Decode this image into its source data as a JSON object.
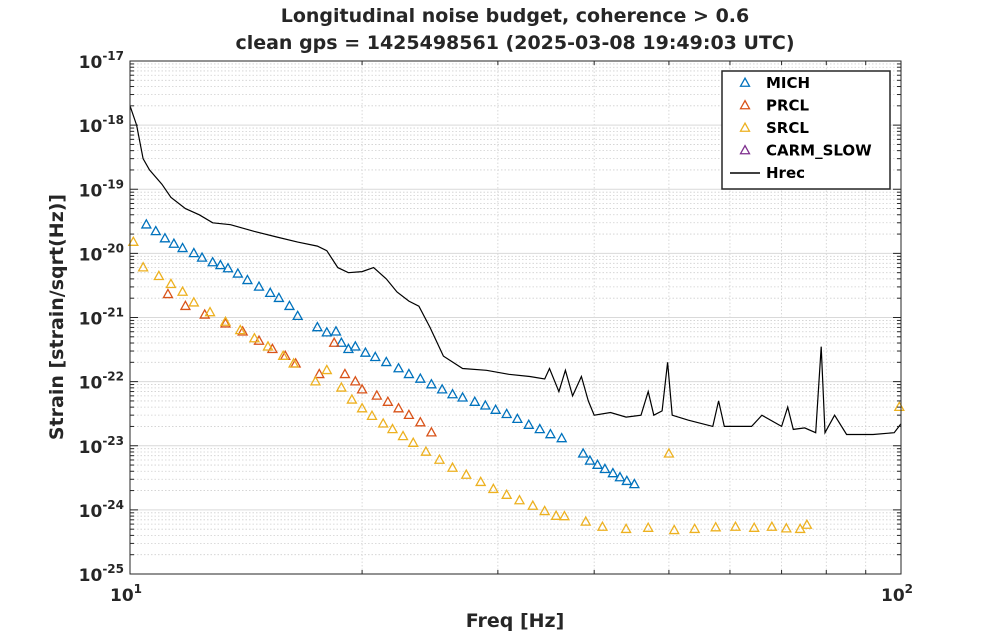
{
  "chart_data": {
    "type": "scatter",
    "title": "Longitudinal noise budget, coherence > 0.6",
    "subtitle": "clean gps = 1425498561 (2025-03-08 19:49:03 UTC)",
    "xlabel": "Freq [Hz]",
    "ylabel": "Strain [strain/sqrt(Hz)]",
    "xscale": "log",
    "yscale": "log",
    "xlim": [
      10,
      100
    ],
    "ylim": [
      1e-25,
      1e-17
    ],
    "grid": true,
    "minor_grid": true,
    "legend_position": "top-right",
    "x_ticks": [
      {
        "base": "10",
        "exp": "1",
        "value": 10
      },
      {
        "base": "10",
        "exp": "2",
        "value": 100
      }
    ],
    "y_ticks": [
      {
        "base": "10",
        "exp": "-25",
        "value": 1e-25
      },
      {
        "base": "10",
        "exp": "-24",
        "value": 1e-24
      },
      {
        "base": "10",
        "exp": "-23",
        "value": 1e-23
      },
      {
        "base": "10",
        "exp": "-22",
        "value": 1e-22
      },
      {
        "base": "10",
        "exp": "-21",
        "value": 1e-21
      },
      {
        "base": "10",
        "exp": "-20",
        "value": 1e-20
      },
      {
        "base": "10",
        "exp": "-19",
        "value": 1e-19
      },
      {
        "base": "10",
        "exp": "-18",
        "value": 1e-18
      },
      {
        "base": "10",
        "exp": "-17",
        "value": 1e-17
      }
    ],
    "series": [
      {
        "name": "MICH",
        "marker": "triangle",
        "color": "#0072BD",
        "points": [
          [
            10.5,
            2.8e-20
          ],
          [
            10.8,
            2.2e-20
          ],
          [
            11.1,
            1.7e-20
          ],
          [
            11.4,
            1.4e-20
          ],
          [
            11.7,
            1.2e-20
          ],
          [
            12.1,
            1e-20
          ],
          [
            12.4,
            8.5e-21
          ],
          [
            12.8,
            7.2e-21
          ],
          [
            13.1,
            6.5e-21
          ],
          [
            13.4,
            5.8e-21
          ],
          [
            13.8,
            4.8e-21
          ],
          [
            14.2,
            3.8e-21
          ],
          [
            14.7,
            3e-21
          ],
          [
            15.2,
            2.4e-21
          ],
          [
            15.6,
            2e-21
          ],
          [
            16.1,
            1.5e-21
          ],
          [
            16.5,
            1.05e-21
          ],
          [
            17.5,
            7e-22
          ],
          [
            18.0,
            5.8e-22
          ],
          [
            18.5,
            6e-22
          ],
          [
            18.8,
            4e-22
          ],
          [
            19.2,
            3.2e-22
          ],
          [
            19.6,
            3.5e-22
          ],
          [
            20.2,
            2.8e-22
          ],
          [
            20.8,
            2.4e-22
          ],
          [
            21.5,
            2e-22
          ],
          [
            22.3,
            1.6e-22
          ],
          [
            23.0,
            1.3e-22
          ],
          [
            23.8,
            1.1e-22
          ],
          [
            24.6,
            9e-23
          ],
          [
            25.4,
            7.5e-23
          ],
          [
            26.2,
            6.3e-23
          ],
          [
            27.0,
            5.6e-23
          ],
          [
            28.0,
            4.8e-23
          ],
          [
            28.9,
            4.2e-23
          ],
          [
            29.8,
            3.6e-23
          ],
          [
            30.8,
            3.1e-23
          ],
          [
            31.8,
            2.6e-23
          ],
          [
            32.9,
            2.1e-23
          ],
          [
            34.0,
            1.8e-23
          ],
          [
            35.1,
            1.5e-23
          ],
          [
            36.3,
            1.3e-23
          ],
          [
            38.7,
            7.5e-24
          ],
          [
            39.5,
            5.8e-24
          ],
          [
            40.4,
            5e-24
          ],
          [
            41.3,
            4.3e-24
          ],
          [
            42.3,
            3.7e-24
          ],
          [
            43.2,
            3.2e-24
          ],
          [
            44.1,
            2.8e-24
          ],
          [
            45.1,
            2.5e-24
          ]
        ]
      },
      {
        "name": "PRCL",
        "marker": "triangle",
        "color": "#D95319",
        "points": [
          [
            11.2,
            2.3e-21
          ],
          [
            11.8,
            1.5e-21
          ],
          [
            12.5,
            1.1e-21
          ],
          [
            13.3,
            8e-22
          ],
          [
            14.0,
            6e-22
          ],
          [
            14.7,
            4.3e-22
          ],
          [
            15.3,
            3.2e-22
          ],
          [
            15.9,
            2.5e-22
          ],
          [
            16.4,
            1.9e-22
          ],
          [
            17.6,
            1.3e-22
          ],
          [
            18.4,
            4e-22
          ],
          [
            19.0,
            1.3e-22
          ],
          [
            19.6,
            1e-22
          ],
          [
            20.0,
            7.5e-23
          ],
          [
            20.9,
            6e-23
          ],
          [
            21.6,
            4.8e-23
          ],
          [
            22.3,
            3.8e-23
          ],
          [
            23.0,
            3e-23
          ],
          [
            23.8,
            2.3e-23
          ],
          [
            24.6,
            1.6e-23
          ]
        ]
      },
      {
        "name": "SRCL",
        "marker": "triangle",
        "color": "#EDB120",
        "points": [
          [
            10.1,
            1.5e-20
          ],
          [
            10.4,
            6e-21
          ],
          [
            10.9,
            4.4e-21
          ],
          [
            11.3,
            3.3e-21
          ],
          [
            11.7,
            2.5e-21
          ],
          [
            12.1,
            1.7e-21
          ],
          [
            12.7,
            1.2e-21
          ],
          [
            13.3,
            8.5e-22
          ],
          [
            13.9,
            6.3e-22
          ],
          [
            14.5,
            4.7e-22
          ],
          [
            15.1,
            3.5e-22
          ],
          [
            15.8,
            2.5e-22
          ],
          [
            16.3,
            1.9e-22
          ],
          [
            17.4,
            1e-22
          ],
          [
            18.0,
            1.5e-22
          ],
          [
            18.8,
            8e-23
          ],
          [
            19.4,
            5.2e-23
          ],
          [
            20.0,
            3.8e-23
          ],
          [
            20.6,
            2.9e-23
          ],
          [
            21.3,
            2.2e-23
          ],
          [
            21.9,
            1.8e-23
          ],
          [
            22.6,
            1.4e-23
          ],
          [
            23.3,
            1.1e-23
          ],
          [
            24.2,
            8e-24
          ],
          [
            25.2,
            6e-24
          ],
          [
            26.2,
            4.5e-24
          ],
          [
            27.3,
            3.5e-24
          ],
          [
            28.5,
            2.7e-24
          ],
          [
            29.6,
            2.1e-24
          ],
          [
            30.8,
            1.7e-24
          ],
          [
            32.0,
            1.4e-24
          ],
          [
            33.3,
            1.15e-24
          ],
          [
            34.5,
            9.5e-25
          ],
          [
            35.7,
            8e-25
          ],
          [
            36.6,
            7.9e-25
          ],
          [
            39.0,
            6.5e-25
          ],
          [
            41.0,
            5.4e-25
          ],
          [
            44.0,
            5e-25
          ],
          [
            47.0,
            5.2e-25
          ],
          [
            50.0,
            7.5e-24
          ],
          [
            50.8,
            4.8e-25
          ],
          [
            54.0,
            5e-25
          ],
          [
            57.5,
            5.3e-25
          ],
          [
            61.0,
            5.4e-25
          ],
          [
            64.5,
            5.2e-25
          ],
          [
            68.0,
            5.4e-25
          ],
          [
            71.0,
            5.1e-25
          ],
          [
            74.0,
            5e-25
          ],
          [
            75.5,
            5.8e-25
          ],
          [
            99.5,
            4e-23
          ]
        ]
      },
      {
        "name": "CARM_SLOW",
        "marker": "triangle",
        "color": "#7E2F8E",
        "points": []
      },
      {
        "name": "Hrec",
        "marker": "line",
        "color": "#000000",
        "points": [
          [
            10.0,
            2e-18
          ],
          [
            10.2,
            1e-18
          ],
          [
            10.4,
            3e-19
          ],
          [
            10.6,
            2e-19
          ],
          [
            11.0,
            1.2e-19
          ],
          [
            11.3,
            7.5e-20
          ],
          [
            11.8,
            5e-20
          ],
          [
            12.3,
            4e-20
          ],
          [
            12.8,
            3e-20
          ],
          [
            13.5,
            2.8e-20
          ],
          [
            14.5,
            2.2e-20
          ],
          [
            15.5,
            1.8e-20
          ],
          [
            16.5,
            1.5e-20
          ],
          [
            17.5,
            1.3e-20
          ],
          [
            18.0,
            1.1e-20
          ],
          [
            18.6,
            6e-21
          ],
          [
            19.2,
            5e-21
          ],
          [
            20.0,
            5.2e-21
          ],
          [
            20.7,
            6e-21
          ],
          [
            21.5,
            4e-21
          ],
          [
            22.2,
            2.5e-21
          ],
          [
            23.0,
            1.8e-21
          ],
          [
            23.7,
            1.5e-21
          ],
          [
            24.5,
            7e-22
          ],
          [
            25.5,
            2.5e-22
          ],
          [
            27.0,
            1.6e-22
          ],
          [
            29.0,
            1.5e-22
          ],
          [
            31.0,
            1.3e-22
          ],
          [
            33.0,
            1.2e-22
          ],
          [
            34.5,
            1.1e-22
          ],
          [
            35.0,
            1.6e-22
          ],
          [
            36.0,
            7e-23
          ],
          [
            36.7,
            1.5e-22
          ],
          [
            37.5,
            6e-23
          ],
          [
            38.5,
            1.2e-22
          ],
          [
            39.3,
            5e-23
          ],
          [
            40.0,
            3e-23
          ],
          [
            42.0,
            3.3e-23
          ],
          [
            44.0,
            2.8e-23
          ],
          [
            46.0,
            3e-23
          ],
          [
            47.0,
            7e-23
          ],
          [
            47.8,
            3e-23
          ],
          [
            49.0,
            3.5e-23
          ],
          [
            49.8,
            2e-22
          ],
          [
            50.5,
            3e-23
          ],
          [
            53.0,
            2.5e-23
          ],
          [
            57.0,
            2e-23
          ],
          [
            58.0,
            5e-23
          ],
          [
            59.0,
            2e-23
          ],
          [
            64.0,
            2e-23
          ],
          [
            66.0,
            3e-23
          ],
          [
            70.0,
            2e-23
          ],
          [
            71.3,
            4e-23
          ],
          [
            72.5,
            1.8e-23
          ],
          [
            75.0,
            1.9e-23
          ],
          [
            77.5,
            1.6e-23
          ],
          [
            78.8,
            3.5e-22
          ],
          [
            79.7,
            1.6e-23
          ],
          [
            82.0,
            3e-23
          ],
          [
            85.0,
            1.5e-23
          ],
          [
            92.0,
            1.5e-23
          ],
          [
            98.0,
            1.6e-23
          ],
          [
            100.0,
            2.2e-23
          ]
        ]
      }
    ]
  }
}
